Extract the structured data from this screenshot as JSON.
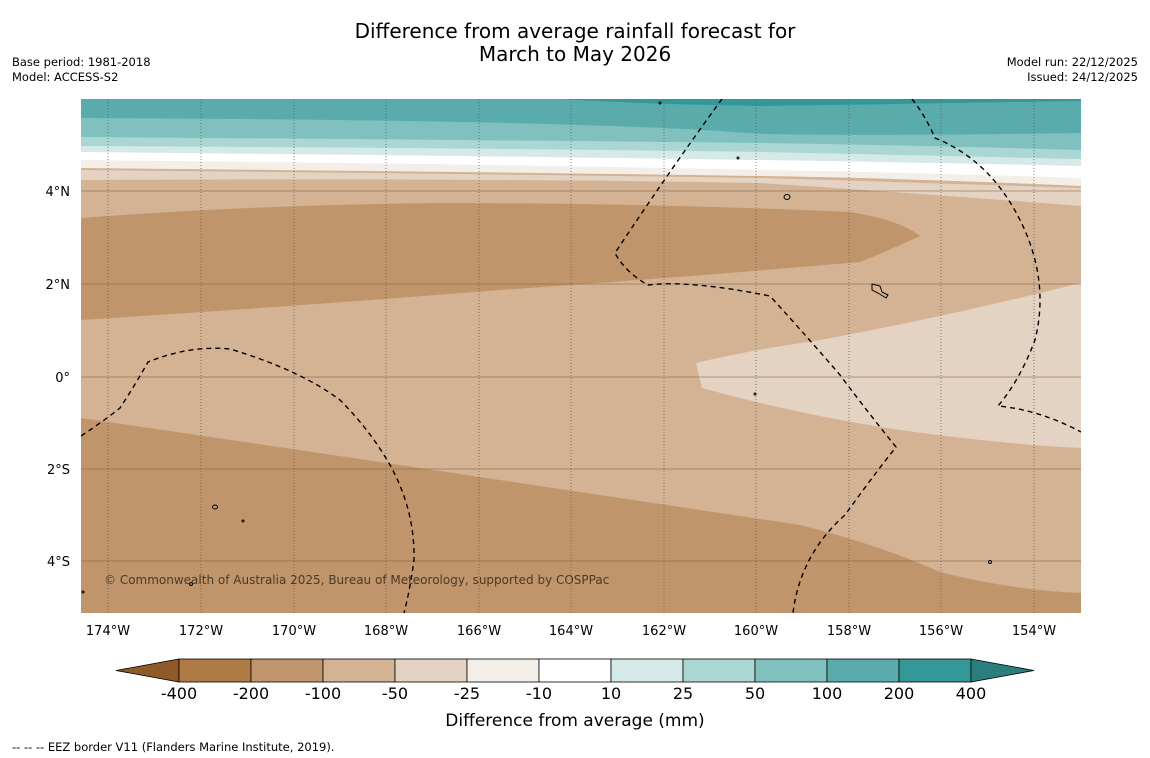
{
  "header": {
    "title_line1": "Difference from average rainfall forecast for",
    "title_line2": "March to May 2026",
    "base_period": "Base period: 1981-2018",
    "model": "Model: ACCESS-S2",
    "model_run": "Model run: 22/12/2025",
    "issued": "Issued: 24/12/2025"
  },
  "map": {
    "lon_labels": [
      "174°W",
      "172°W",
      "170°W",
      "168°W",
      "166°W",
      "164°W",
      "162°W",
      "160°W",
      "158°W",
      "156°W",
      "154°W"
    ],
    "lat_labels": [
      "4°N",
      "2°N",
      "0°",
      "2°S",
      "4°S"
    ],
    "copyright": "© Commonwealth of Australia 2025, Bureau of Meteorology, supported by COSPPac"
  },
  "colorbar": {
    "title": "Difference from average (mm)",
    "tick_labels": [
      "-400",
      "-200",
      "-100",
      "-50",
      "-25",
      "-10",
      "10",
      "25",
      "50",
      "100",
      "200",
      "400"
    ],
    "colors": [
      "#8f5a2a",
      "#b07a45",
      "#c1956b",
      "#d3b393",
      "#e4d3c2",
      "#f4eee8",
      "#ffffff",
      "#d5eae8",
      "#aad6d4",
      "#80c1bf",
      "#5aabac",
      "#359898",
      "#2a7e7e"
    ]
  },
  "footer": {
    "legend_note": "--  --  -- EEZ border V11 (Flanders Marine Institute, 2019)."
  }
}
